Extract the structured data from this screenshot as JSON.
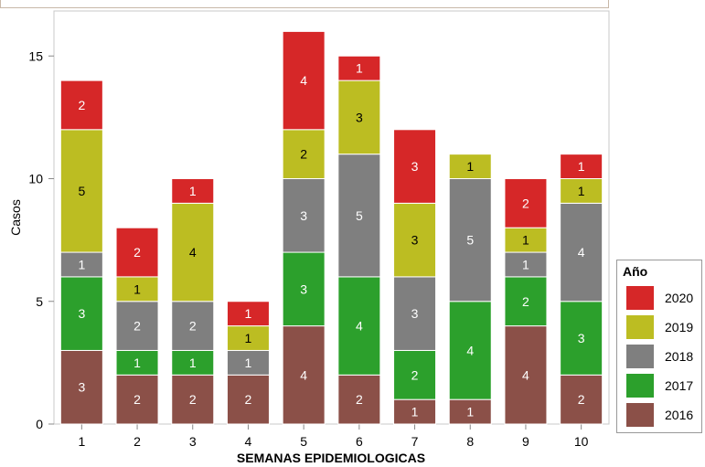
{
  "chart_data": {
    "type": "bar",
    "stacked": true,
    "title": "",
    "xlabel": "SEMANAS EPIDEMIOLOGICAS",
    "ylabel": "Casos",
    "categories": [
      "1",
      "2",
      "3",
      "4",
      "5",
      "6",
      "7",
      "8",
      "9",
      "10"
    ],
    "ylim": [
      0,
      16.5
    ],
    "yticks": [
      0,
      5,
      10,
      15
    ],
    "grid": false,
    "legend_position": "right",
    "legend_title": "Año",
    "series": [
      {
        "name": "2016",
        "color": "#8b5048",
        "values": [
          3,
          2,
          2,
          2,
          4,
          2,
          1,
          1,
          4,
          2
        ]
      },
      {
        "name": "2017",
        "color": "#2ca02c",
        "values": [
          3,
          1,
          1,
          0,
          3,
          4,
          2,
          4,
          2,
          3
        ]
      },
      {
        "name": "2018",
        "color": "#7f7f7f",
        "values": [
          1,
          2,
          2,
          1,
          3,
          5,
          3,
          5,
          1,
          4
        ]
      },
      {
        "name": "2019",
        "color": "#bcbd22",
        "values": [
          5,
          1,
          4,
          1,
          2,
          3,
          3,
          1,
          1,
          1
        ]
      },
      {
        "name": "2020",
        "color": "#d62728",
        "values": [
          2,
          2,
          1,
          1,
          4,
          1,
          3,
          0,
          2,
          1
        ]
      }
    ]
  }
}
